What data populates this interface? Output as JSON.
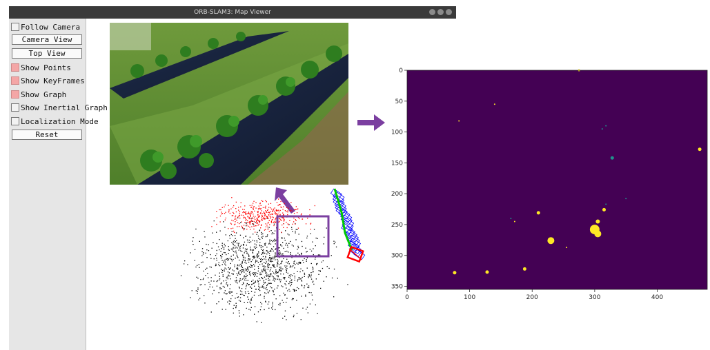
{
  "window": {
    "title": "ORB-SLAM3: Map Viewer"
  },
  "panel": {
    "follow_camera": "Follow Camera",
    "camera_view": "Camera View",
    "top_view": "Top View",
    "show_points": "Show Points",
    "show_keyframes": "Show KeyFrames",
    "show_graph": "Show Graph",
    "show_inertial_graph": "Show Inertial Graph",
    "localization_mode": "Localization Mode",
    "reset": "Reset",
    "follow_camera_checked": false,
    "show_points_checked": true,
    "show_keyframes_checked": true,
    "show_graph_checked": true,
    "show_inertial_graph_checked": false,
    "localization_mode_checked": false
  },
  "colors": {
    "accent_arrow": "#7b3fa0",
    "heatmap_bg": "#440154",
    "heatmap_yellow": "#fde725",
    "heatmap_teal": "#21918c",
    "map_points": "#ff0000",
    "keyframes": "#0000ff",
    "graph": "#00cc00"
  },
  "chart_data": {
    "type": "heatmap",
    "title": "",
    "xlabel": "",
    "ylabel": "",
    "xlim": [
      0,
      480
    ],
    "ylim": [
      0,
      355
    ],
    "y_inverted": true,
    "x_ticks": [
      "0",
      "100",
      "200",
      "300",
      "400"
    ],
    "y_ticks": [
      "0",
      "50",
      "100",
      "150",
      "200",
      "250",
      "300",
      "350"
    ],
    "x_tick_values": [
      0,
      100,
      200,
      300,
      400
    ],
    "y_tick_values": [
      0,
      50,
      100,
      150,
      200,
      250,
      300,
      350
    ],
    "blobs": [
      {
        "x": 275,
        "y": 0,
        "r": 1.5,
        "c": "yellow"
      },
      {
        "x": 140,
        "y": 55,
        "r": 1,
        "c": "yellow"
      },
      {
        "x": 83,
        "y": 82,
        "r": 1,
        "c": "yellow"
      },
      {
        "x": 312,
        "y": 95,
        "r": 1,
        "c": "teal"
      },
      {
        "x": 318,
        "y": 90,
        "r": 1,
        "c": "teal"
      },
      {
        "x": 328,
        "y": 142,
        "r": 2.5,
        "c": "teal"
      },
      {
        "x": 468,
        "y": 128,
        "r": 2.5,
        "c": "yellow"
      },
      {
        "x": 350,
        "y": 208,
        "r": 1,
        "c": "teal"
      },
      {
        "x": 315,
        "y": 226,
        "r": 2.5,
        "c": "yellow"
      },
      {
        "x": 318,
        "y": 217,
        "r": 1,
        "c": "teal"
      },
      {
        "x": 210,
        "y": 231,
        "r": 2.5,
        "c": "yellow"
      },
      {
        "x": 166,
        "y": 240,
        "r": 1,
        "c": "teal"
      },
      {
        "x": 172,
        "y": 245,
        "r": 1,
        "c": "yellow"
      },
      {
        "x": 305,
        "y": 245,
        "r": 3,
        "c": "yellow"
      },
      {
        "x": 300,
        "y": 258,
        "r": 7,
        "c": "yellow"
      },
      {
        "x": 305,
        "y": 265,
        "r": 5,
        "c": "yellow"
      },
      {
        "x": 230,
        "y": 276,
        "r": 5,
        "c": "yellow"
      },
      {
        "x": 255,
        "y": 287,
        "r": 1,
        "c": "yellow"
      },
      {
        "x": 76,
        "y": 328,
        "r": 2.5,
        "c": "yellow"
      },
      {
        "x": 128,
        "y": 327,
        "r": 2.5,
        "c": "yellow"
      },
      {
        "x": 188,
        "y": 322,
        "r": 2.5,
        "c": "yellow"
      }
    ]
  }
}
